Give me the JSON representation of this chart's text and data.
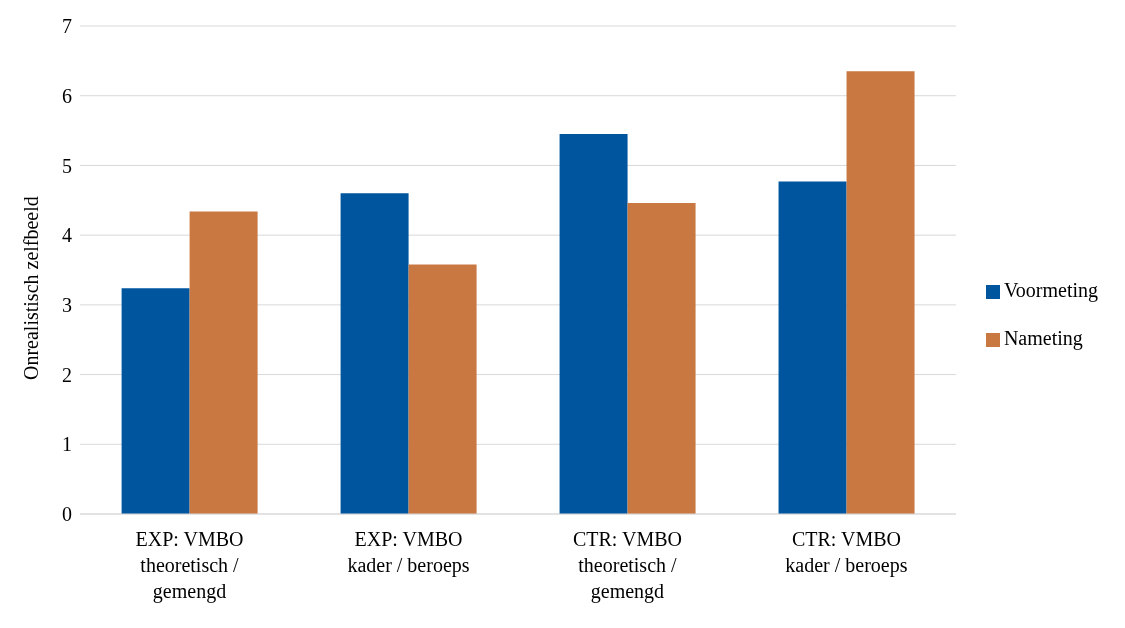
{
  "chart_data": {
    "type": "bar",
    "ylabel": "Onrealistisch zelfbeeld",
    "categories": [
      "EXP: VMBO\ntheoretisch /\ngemengd",
      "EXP: VMBO\nkader / beroeps",
      "CTR: VMBO\ntheoretisch /\ngemengd",
      "CTR: VMBO\nkader / beroeps"
    ],
    "series": [
      {
        "name": "Voormeting",
        "color": "#00559f",
        "values": [
          3.24,
          4.6,
          5.45,
          4.77
        ]
      },
      {
        "name": "Nameting",
        "color": "#c97842",
        "values": [
          4.34,
          3.58,
          4.46,
          6.35
        ]
      }
    ],
    "ylim": [
      0,
      7
    ],
    "yticks": [
      0,
      1,
      2,
      3,
      4,
      5,
      6,
      7
    ],
    "grid": "y",
    "legend": "right"
  }
}
